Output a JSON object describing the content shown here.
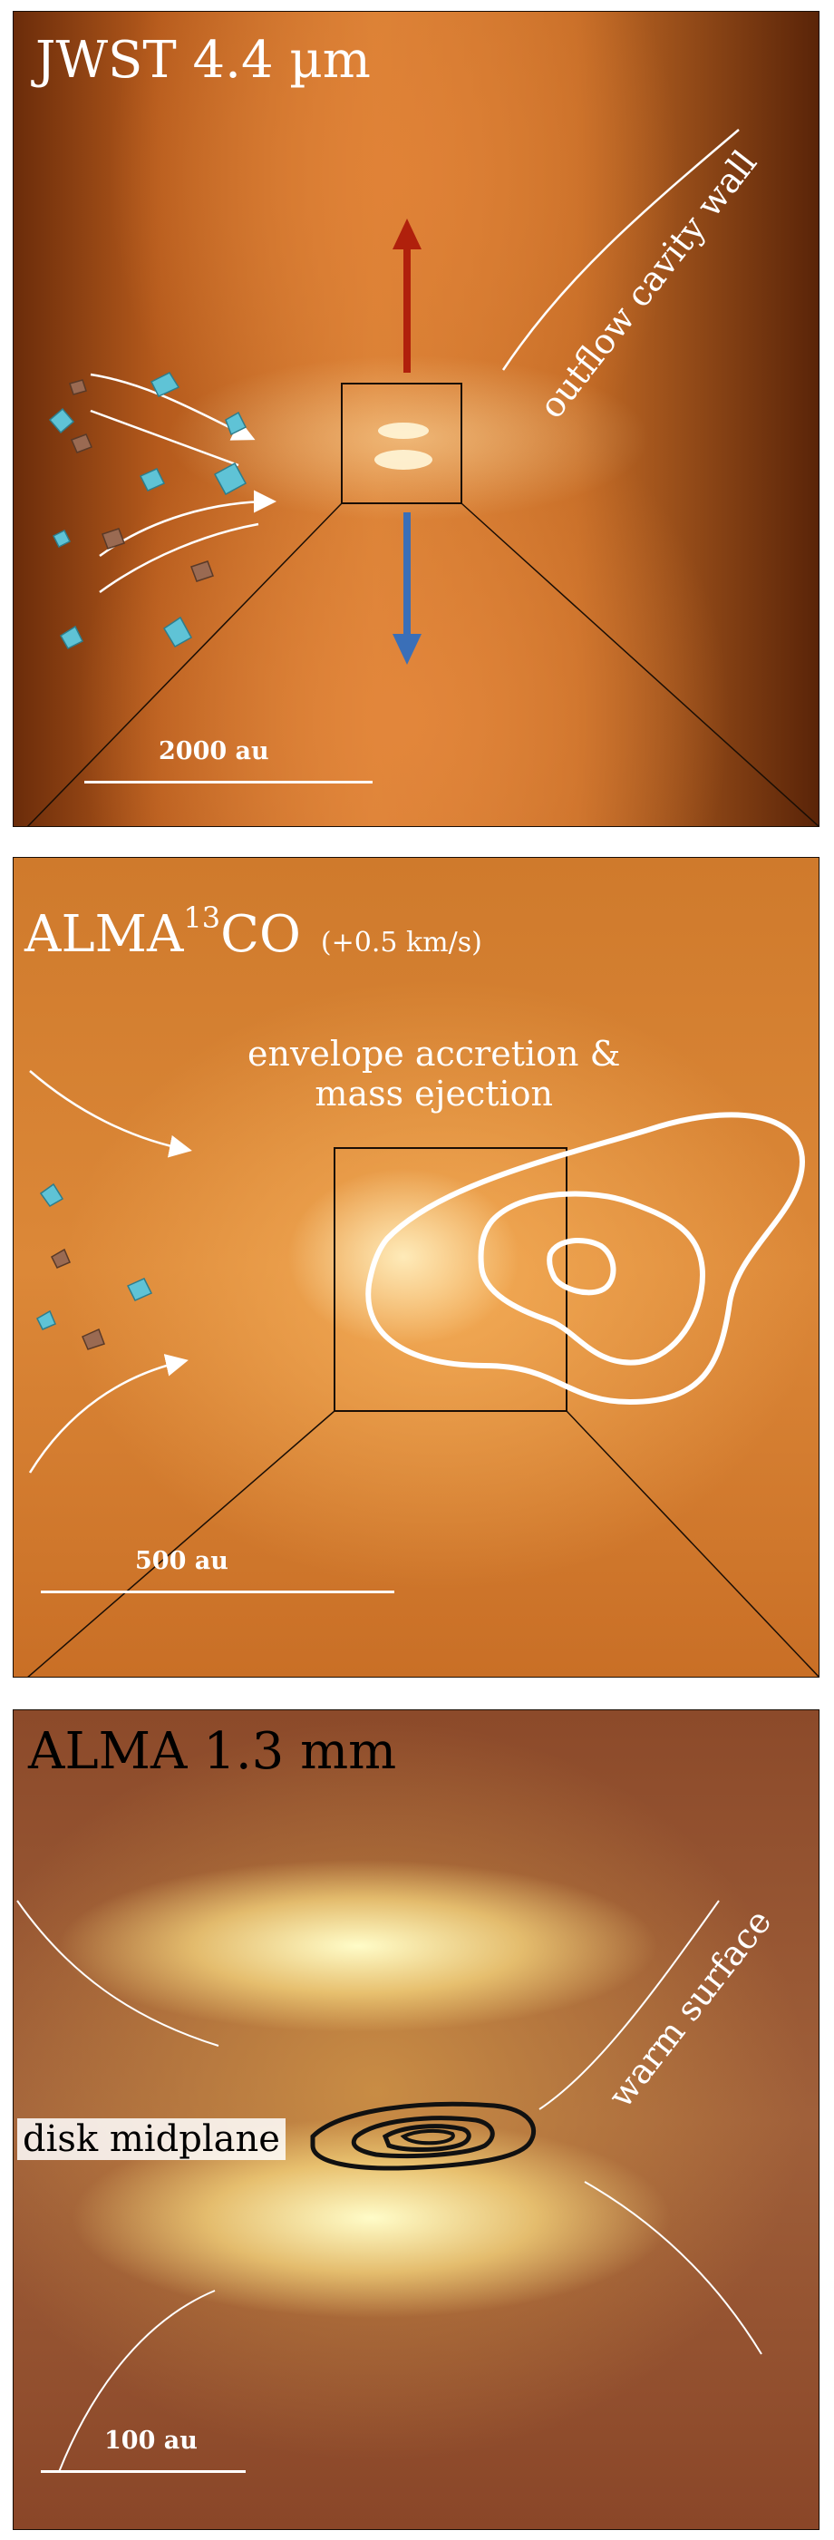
{
  "panels": {
    "top": {
      "title": "JWST 4.4 µm",
      "cavity_label": "outflow cavity wall",
      "scale_label": "2000 au"
    },
    "middle": {
      "title_prefix": "ALMA",
      "title_superscript": "13",
      "title_suffix": "CO",
      "velocity": "(+0.5 km/s)",
      "annotation_line1": "envelope accretion &",
      "annotation_line2": "mass ejection",
      "scale_label": "500 au"
    },
    "bottom": {
      "title": "ALMA 1.3 mm",
      "surface_label": "warm surface",
      "midplane_label": "disk midplane",
      "scale_label": "100 au"
    }
  },
  "colors": {
    "outflow_red": "#b0200c",
    "outflow_blue": "#3a6fb8",
    "dust_cyan": "#5fc3d6",
    "dust_brown": "#9a6a52"
  }
}
